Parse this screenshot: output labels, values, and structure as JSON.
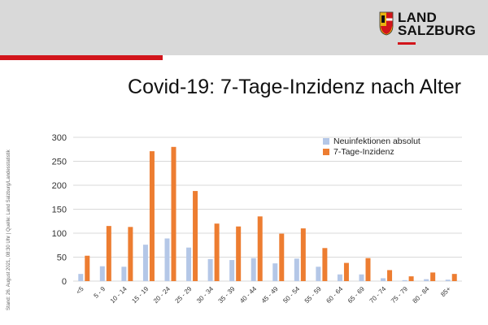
{
  "brand": {
    "line1": "LAND",
    "line2": "SALZBURG",
    "colors": {
      "band": "#d9d9d9",
      "accent_red": "#d2151b",
      "logo_gold": "#e8b30f"
    }
  },
  "side_note": "Stand: 26. August 2021, 08:30 Uhr | Quelle: Land Salzburg/Landesstatistik",
  "chart_data": {
    "type": "bar",
    "title": "Covid-19: 7-Tage-Inzidenz nach Alter",
    "xlabel": "",
    "ylabel": "",
    "ylim": [
      0,
      300
    ],
    "yticks": [
      0,
      50,
      100,
      150,
      200,
      250,
      300
    ],
    "grid": true,
    "legend_position": "top-right",
    "categories": [
      "<5",
      "5 - 9",
      "10 - 14",
      "15 - 19",
      "20 - 24",
      "25 - 29",
      "30 - 34",
      "35 - 39",
      "40 - 44",
      "45 - 49",
      "50 - 54",
      "55 - 59",
      "60 - 64",
      "65 - 69",
      "70 - 74",
      "75 - 79",
      "80 - 84",
      "85+"
    ],
    "series": [
      {
        "name": "Neuinfektionen absolut",
        "color": "#b4c7e7",
        "values": [
          15,
          31,
          30,
          76,
          89,
          70,
          46,
          44,
          48,
          37,
          47,
          30,
          14,
          14,
          6,
          2,
          4,
          3
        ]
      },
      {
        "name": "7-Tage-Inzidenz",
        "color": "#ed7d31",
        "values": [
          53,
          115,
          113,
          271,
          280,
          188,
          120,
          114,
          135,
          99,
          110,
          69,
          38,
          48,
          23,
          10,
          18,
          15
        ]
      }
    ]
  }
}
